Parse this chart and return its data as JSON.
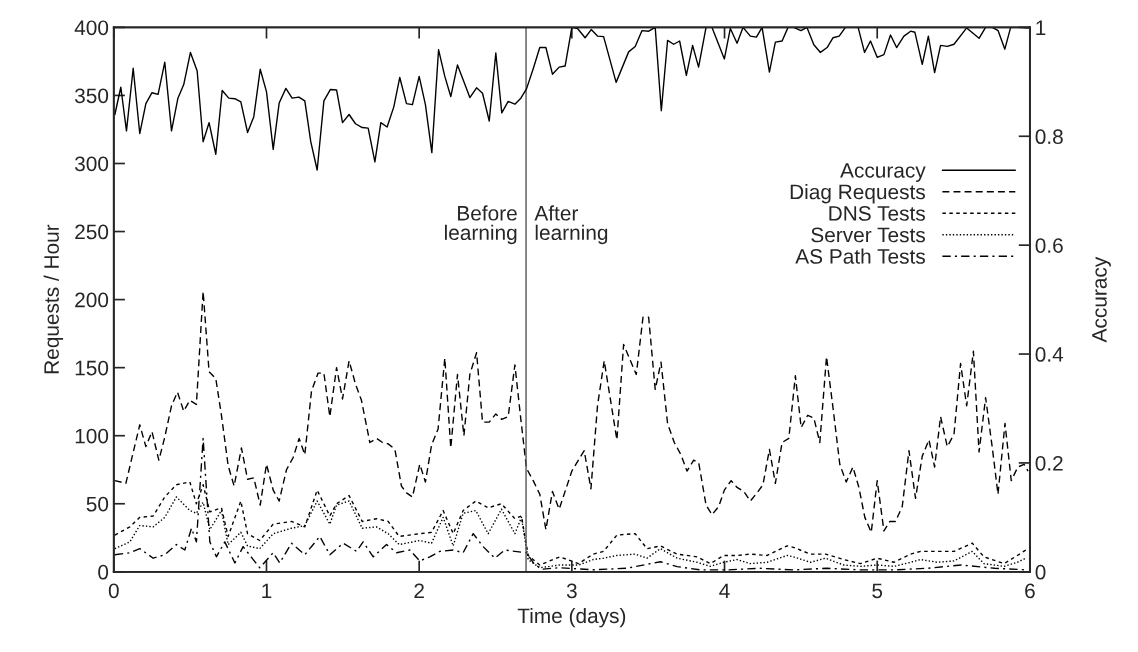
{
  "chart_data": {
    "type": "line",
    "xlabel": "Time (days)",
    "ylabel": "Requests / Hour",
    "y2label": "Accuracy",
    "xlim": [
      0,
      6
    ],
    "xticks": [
      0,
      1,
      2,
      3,
      4,
      5,
      6
    ],
    "ylim": [
      0,
      400
    ],
    "yticks": [
      0,
      50,
      100,
      150,
      200,
      250,
      300,
      350,
      400
    ],
    "y2lim": [
      0,
      1
    ],
    "y2ticks": [
      0,
      0.2,
      0.4,
      0.6,
      0.8,
      1
    ],
    "grid": false,
    "legend": "right",
    "marker": "none",
    "ref_lines": [
      {
        "axis": "x",
        "value": 2.7,
        "color": "#555555",
        "line_style": "solid"
      }
    ],
    "annotations": [
      {
        "text": "Before\nlearning",
        "x": 2.7,
        "y": 255
      },
      {
        "text": "After\nlearning",
        "x": 2.7,
        "y": 255
      }
    ],
    "series": [
      {
        "name": "Accuracy",
        "color": "#000000",
        "axis": "y2",
        "line_style": "solid",
        "x": [
          0.007,
          0.046,
          0.083,
          0.127,
          0.17,
          0.21,
          0.25,
          0.29,
          0.334,
          0.378,
          0.42,
          0.458,
          0.502,
          0.546,
          0.585,
          0.624,
          0.668,
          0.71,
          0.753,
          0.793,
          0.832,
          0.876,
          0.917,
          0.959,
          1.0,
          1.044,
          1.083,
          1.127,
          1.168,
          1.212,
          1.251,
          1.29,
          1.332,
          1.376,
          1.419,
          1.459,
          1.498,
          1.541,
          1.583,
          1.627,
          1.666,
          1.71,
          1.749,
          1.79,
          1.834,
          1.873,
          1.917,
          1.956,
          2.0,
          2.041,
          2.083,
          2.127,
          2.168,
          2.207,
          2.251,
          2.293,
          2.332,
          2.376,
          2.415,
          2.459,
          2.502,
          2.541,
          2.583,
          2.627,
          2.666,
          2.703,
          2.747,
          2.79,
          2.83,
          2.873,
          2.917,
          2.956,
          3.0,
          3.037,
          3.087,
          3.127,
          3.168,
          3.208,
          3.29,
          3.372,
          3.415,
          3.459,
          3.503,
          3.546,
          3.586,
          3.627,
          3.667,
          3.706,
          3.75,
          3.791,
          3.83,
          3.879,
          3.918,
          3.999,
          4.038,
          4.082,
          4.121,
          4.169,
          4.209,
          4.246,
          4.294,
          4.333,
          4.377,
          4.416,
          4.454,
          4.5,
          4.54,
          4.585,
          4.628,
          4.672,
          4.711,
          4.751,
          4.792,
          4.836,
          4.875,
          4.917,
          4.956,
          5.0,
          5.044,
          5.087,
          5.127,
          5.175,
          5.219,
          5.247,
          5.295,
          5.335,
          5.376,
          5.415,
          5.459,
          5.503,
          5.586,
          5.667,
          5.71,
          5.754,
          5.792,
          5.836,
          5.874,
          5.94,
          5.973,
          5.995
        ],
        "values": [
          0.84,
          0.89,
          0.81,
          0.925,
          0.805,
          0.86,
          0.88,
          0.877,
          0.936,
          0.81,
          0.87,
          0.895,
          0.954,
          0.92,
          0.79,
          0.825,
          0.767,
          0.884,
          0.87,
          0.869,
          0.863,
          0.807,
          0.836,
          0.923,
          0.882,
          0.776,
          0.861,
          0.888,
          0.87,
          0.872,
          0.865,
          0.79,
          0.738,
          0.865,
          0.886,
          0.885,
          0.825,
          0.84,
          0.823,
          0.816,
          0.815,
          0.753,
          0.825,
          0.817,
          0.854,
          0.908,
          0.86,
          0.858,
          0.91,
          0.858,
          0.77,
          0.959,
          0.91,
          0.873,
          0.931,
          0.9,
          0.871,
          0.889,
          0.879,
          0.828,
          0.953,
          0.843,
          0.864,
          0.859,
          0.87,
          0.887,
          0.924,
          0.963,
          0.963,
          0.914,
          0.927,
          0.929,
          1.0,
          0.998,
          0.981,
          0.996,
          0.984,
          0.983,
          0.899,
          0.955,
          0.965,
          0.994,
          0.993,
          1.0,
          0.847,
          0.976,
          0.969,
          0.975,
          0.912,
          0.967,
          0.927,
          1.0,
          1.0,
          0.942,
          0.998,
          0.971,
          1.0,
          0.984,
          0.982,
          1.0,
          0.918,
          0.973,
          0.975,
          1.0,
          1.0,
          0.994,
          1.0,
          0.968,
          0.954,
          0.963,
          0.981,
          0.984,
          1.0,
          1.0,
          1.0,
          0.954,
          0.975,
          0.945,
          0.95,
          0.986,
          0.963,
          0.984,
          0.993,
          0.991,
          0.932,
          0.984,
          0.917,
          0.967,
          0.965,
          0.969,
          0.999,
          0.98,
          1.0,
          1.0,
          0.994,
          0.96,
          1.0,
          1.0,
          0.999,
          0.999
        ]
      },
      {
        "name": "Diag Requests",
        "color": "#000000",
        "line_style": "dashed",
        "x": [
          0.007,
          0.079,
          0.17,
          0.21,
          0.25,
          0.295,
          0.334,
          0.378,
          0.417,
          0.458,
          0.498,
          0.541,
          0.585,
          0.624,
          0.668,
          0.705,
          0.749,
          0.788,
          0.836,
          0.876,
          0.917,
          0.959,
          1.0,
          1.044,
          1.083,
          1.131,
          1.175,
          1.214,
          1.251,
          1.295,
          1.338,
          1.376,
          1.415,
          1.459,
          1.498,
          1.541,
          1.583,
          1.622,
          1.677,
          1.721,
          1.76,
          1.797,
          1.841,
          1.884,
          1.917,
          1.956,
          2.004,
          2.041,
          2.081,
          2.124,
          2.168,
          2.207,
          2.251,
          2.293,
          2.332,
          2.376,
          2.415,
          2.459,
          2.502,
          2.541,
          2.583,
          2.627,
          2.666,
          2.703,
          2.747,
          2.79,
          2.83,
          2.873,
          2.917,
          3.0,
          3.081,
          3.125,
          3.168,
          3.212,
          3.295,
          3.339,
          3.422,
          3.466,
          3.503,
          3.546,
          3.584,
          3.627,
          3.671,
          3.715,
          3.754,
          3.798,
          3.831,
          3.879,
          3.918,
          3.962,
          3.999,
          4.043,
          4.082,
          4.126,
          4.169,
          4.213,
          4.252,
          4.294,
          4.333,
          4.377,
          4.421,
          4.464,
          4.502,
          4.545,
          4.585,
          4.624,
          4.668,
          4.711,
          4.755,
          4.797,
          4.841,
          4.88,
          4.919,
          4.961,
          5.0,
          5.044,
          5.083,
          5.12,
          5.164,
          5.208,
          5.251,
          5.295,
          5.339,
          5.376,
          5.415,
          5.459,
          5.503,
          5.546,
          5.586,
          5.63,
          5.667,
          5.71,
          5.754,
          5.791,
          5.837,
          5.878,
          5.921,
          5.962,
          5.988
        ],
        "values": [
          67,
          65,
          108,
          92,
          103,
          82,
          99,
          122,
          132,
          118,
          126,
          123,
          206,
          147,
          142,
          115,
          78,
          63,
          91,
          68,
          69,
          49,
          79,
          60,
          52,
          75,
          84,
          98,
          86,
          133,
          146,
          146,
          114,
          150,
          127,
          155,
          138,
          126,
          95,
          98,
          95,
          94,
          90,
          63,
          58,
          55,
          79,
          66,
          93,
          105,
          157,
          91,
          145,
          100,
          145,
          161,
          110,
          110,
          116,
          112,
          114,
          152,
          112,
          76,
          67,
          57,
          31,
          59,
          46,
          74,
          89,
          61,
          122,
          155,
          97,
          167,
          145,
          187,
          187,
          134,
          154,
          109,
          95,
          86,
          74,
          82,
          80,
          49,
          42,
          48,
          60,
          67,
          62,
          59,
          52,
          58,
          64,
          90,
          65,
          95,
          98,
          144,
          106,
          115,
          113,
          95,
          158,
          120,
          79,
          66,
          77,
          62,
          40,
          29,
          67,
          30,
          37,
          37,
          48,
          89,
          54,
          85,
          97,
          77,
          114,
          92,
          101,
          153,
          122,
          162,
          88,
          128,
          91,
          57,
          109,
          67,
          77,
          79,
          74
        ]
      },
      {
        "name": "DNS Tests",
        "color": "#000000",
        "line_style": "short-dashed",
        "x": [
          0.007,
          0.105,
          0.17,
          0.258,
          0.334,
          0.41,
          0.498,
          0.541,
          0.585,
          0.629,
          0.705,
          0.749,
          0.832,
          0.876,
          0.956,
          1.044,
          1.164,
          1.251,
          1.332,
          1.415,
          1.459,
          1.541,
          1.627,
          1.721,
          1.797,
          1.869,
          2.004,
          2.081,
          2.157,
          2.223,
          2.288,
          2.371,
          2.452,
          2.539,
          2.627,
          2.67,
          2.714,
          2.79,
          2.921,
          3.044,
          3.14,
          3.208,
          3.295,
          3.415,
          3.492,
          3.58,
          3.69,
          3.82,
          3.907,
          3.995,
          4.082,
          4.169,
          4.279,
          4.41,
          4.45,
          4.563,
          4.661,
          4.781,
          4.89,
          5.0,
          5.11,
          5.219,
          5.284,
          5.393,
          5.503,
          5.623,
          5.699,
          5.831,
          5.918,
          5.973
        ],
        "values": [
          27,
          33,
          40,
          41,
          55,
          64,
          66,
          50,
          64,
          44,
          47,
          26,
          52,
          28,
          23,
          35,
          37,
          33,
          60,
          41,
          50,
          56,
          37,
          39,
          37,
          26,
          28,
          29,
          45,
          28,
          45,
          52,
          47,
          50,
          39,
          41,
          12,
          5,
          11,
          6,
          13,
          15,
          27,
          28,
          17,
          19,
          13,
          11,
          6,
          12,
          12,
          13,
          12,
          19,
          18,
          13,
          13,
          9,
          6,
          10,
          7,
          13,
          15,
          15,
          15,
          21,
          11,
          6,
          12,
          16
        ]
      },
      {
        "name": "Server Tests",
        "color": "#000000",
        "line_style": "dotted",
        "x": [
          0.007,
          0.105,
          0.17,
          0.258,
          0.334,
          0.41,
          0.498,
          0.541,
          0.585,
          0.629,
          0.705,
          0.749,
          0.832,
          0.876,
          0.956,
          1.044,
          1.164,
          1.251,
          1.332,
          1.415,
          1.459,
          1.541,
          1.627,
          1.721,
          1.797,
          1.869,
          2.004,
          2.081,
          2.157,
          2.223,
          2.288,
          2.371,
          2.452,
          2.539,
          2.627,
          2.67,
          2.714,
          2.79,
          2.921,
          3.044,
          3.14,
          3.208,
          3.295,
          3.415,
          3.492,
          3.58,
          3.69,
          3.82,
          3.907,
          3.995,
          4.082,
          4.169,
          4.279,
          4.41,
          4.45,
          4.563,
          4.661,
          4.781,
          4.89,
          5.0,
          5.11,
          5.219,
          5.284,
          5.393,
          5.503,
          5.623,
          5.699,
          5.831,
          5.918,
          5.973
        ],
        "values": [
          17,
          22,
          34,
          33,
          40,
          55,
          45,
          43,
          51,
          31,
          45,
          20,
          29,
          19,
          17,
          28,
          32,
          34,
          52,
          35,
          49,
          52,
          32,
          33,
          28,
          20,
          23,
          21,
          40,
          19,
          43,
          45,
          28,
          46,
          28,
          40,
          9,
          3,
          5,
          5,
          9,
          10,
          12,
          13,
          10,
          17,
          10,
          7,
          4,
          7,
          9,
          6,
          7,
          12,
          11,
          7,
          10,
          5,
          4,
          5,
          4,
          7,
          9,
          7,
          8,
          15,
          6,
          4,
          7,
          10
        ]
      },
      {
        "name": "AS Path Tests",
        "color": "#000000",
        "line_style": "dashdot",
        "x": [
          0.007,
          0.105,
          0.17,
          0.258,
          0.334,
          0.41,
          0.465,
          0.509,
          0.541,
          0.585,
          0.629,
          0.672,
          0.727,
          0.793,
          0.847,
          0.913,
          0.956,
          1.044,
          1.087,
          1.164,
          1.251,
          1.349,
          1.415,
          1.502,
          1.59,
          1.633,
          1.699,
          1.786,
          1.852,
          1.939,
          2.004,
          2.07,
          2.135,
          2.223,
          2.288,
          2.354,
          2.419,
          2.496,
          2.561,
          2.627,
          2.703,
          2.758,
          2.812,
          2.921,
          3.14,
          3.36,
          3.58,
          3.69,
          3.84,
          4.02,
          4.23,
          4.45,
          4.67,
          4.89,
          5.11,
          5.33,
          5.55,
          5.77,
          5.98
        ],
        "values": [
          12.5,
          14,
          17,
          10,
          12.5,
          20,
          16,
          32,
          22,
          98,
          22,
          11,
          22,
          6.5,
          18.5,
          9,
          3,
          14,
          6.5,
          21,
          12.5,
          26,
          12.5,
          21,
          15,
          22,
          11,
          20,
          14,
          16,
          8,
          11,
          15,
          16,
          14,
          28,
          18.5,
          10,
          16,
          15,
          14,
          5,
          2,
          3,
          1.5,
          2.6,
          7.4,
          3.8,
          1.4,
          1.4,
          2.6,
          1.4,
          2.6,
          1.4,
          1.4,
          2.6,
          5,
          2.6,
          1.4
        ]
      }
    ]
  }
}
